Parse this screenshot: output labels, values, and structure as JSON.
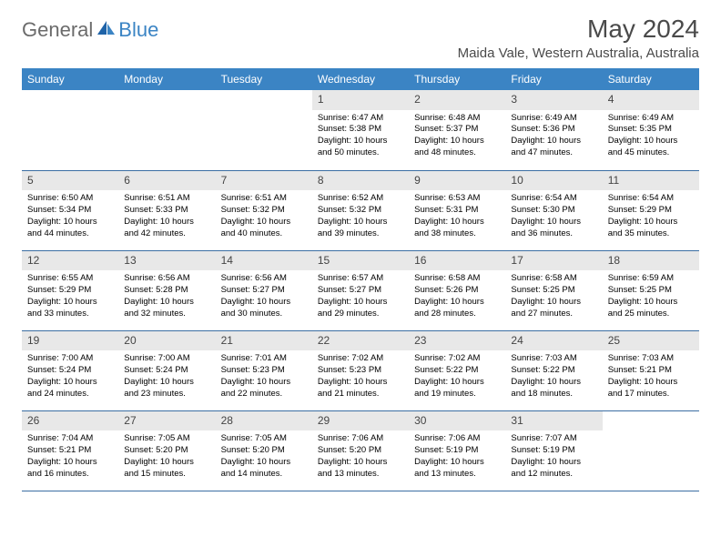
{
  "brand": {
    "part1": "General",
    "part2": "Blue"
  },
  "title": "May 2024",
  "location": "Maida Vale, Western Australia, Australia",
  "colors": {
    "header_bg": "#3b84c4",
    "header_text": "#ffffff",
    "daynum_bg": "#e8e8e8",
    "row_border": "#3b6ea3",
    "title_color": "#4a4a4a",
    "logo_gray": "#6b6b6b",
    "logo_blue": "#3b84c4"
  },
  "weekdays": [
    "Sunday",
    "Monday",
    "Tuesday",
    "Wednesday",
    "Thursday",
    "Friday",
    "Saturday"
  ],
  "weeks": [
    [
      null,
      null,
      null,
      {
        "n": "1",
        "sr": "6:47 AM",
        "ss": "5:38 PM",
        "dl": "10 hours and 50 minutes."
      },
      {
        "n": "2",
        "sr": "6:48 AM",
        "ss": "5:37 PM",
        "dl": "10 hours and 48 minutes."
      },
      {
        "n": "3",
        "sr": "6:49 AM",
        "ss": "5:36 PM",
        "dl": "10 hours and 47 minutes."
      },
      {
        "n": "4",
        "sr": "6:49 AM",
        "ss": "5:35 PM",
        "dl": "10 hours and 45 minutes."
      }
    ],
    [
      {
        "n": "5",
        "sr": "6:50 AM",
        "ss": "5:34 PM",
        "dl": "10 hours and 44 minutes."
      },
      {
        "n": "6",
        "sr": "6:51 AM",
        "ss": "5:33 PM",
        "dl": "10 hours and 42 minutes."
      },
      {
        "n": "7",
        "sr": "6:51 AM",
        "ss": "5:32 PM",
        "dl": "10 hours and 40 minutes."
      },
      {
        "n": "8",
        "sr": "6:52 AM",
        "ss": "5:32 PM",
        "dl": "10 hours and 39 minutes."
      },
      {
        "n": "9",
        "sr": "6:53 AM",
        "ss": "5:31 PM",
        "dl": "10 hours and 38 minutes."
      },
      {
        "n": "10",
        "sr": "6:54 AM",
        "ss": "5:30 PM",
        "dl": "10 hours and 36 minutes."
      },
      {
        "n": "11",
        "sr": "6:54 AM",
        "ss": "5:29 PM",
        "dl": "10 hours and 35 minutes."
      }
    ],
    [
      {
        "n": "12",
        "sr": "6:55 AM",
        "ss": "5:29 PM",
        "dl": "10 hours and 33 minutes."
      },
      {
        "n": "13",
        "sr": "6:56 AM",
        "ss": "5:28 PM",
        "dl": "10 hours and 32 minutes."
      },
      {
        "n": "14",
        "sr": "6:56 AM",
        "ss": "5:27 PM",
        "dl": "10 hours and 30 minutes."
      },
      {
        "n": "15",
        "sr": "6:57 AM",
        "ss": "5:27 PM",
        "dl": "10 hours and 29 minutes."
      },
      {
        "n": "16",
        "sr": "6:58 AM",
        "ss": "5:26 PM",
        "dl": "10 hours and 28 minutes."
      },
      {
        "n": "17",
        "sr": "6:58 AM",
        "ss": "5:25 PM",
        "dl": "10 hours and 27 minutes."
      },
      {
        "n": "18",
        "sr": "6:59 AM",
        "ss": "5:25 PM",
        "dl": "10 hours and 25 minutes."
      }
    ],
    [
      {
        "n": "19",
        "sr": "7:00 AM",
        "ss": "5:24 PM",
        "dl": "10 hours and 24 minutes."
      },
      {
        "n": "20",
        "sr": "7:00 AM",
        "ss": "5:24 PM",
        "dl": "10 hours and 23 minutes."
      },
      {
        "n": "21",
        "sr": "7:01 AM",
        "ss": "5:23 PM",
        "dl": "10 hours and 22 minutes."
      },
      {
        "n": "22",
        "sr": "7:02 AM",
        "ss": "5:23 PM",
        "dl": "10 hours and 21 minutes."
      },
      {
        "n": "23",
        "sr": "7:02 AM",
        "ss": "5:22 PM",
        "dl": "10 hours and 19 minutes."
      },
      {
        "n": "24",
        "sr": "7:03 AM",
        "ss": "5:22 PM",
        "dl": "10 hours and 18 minutes."
      },
      {
        "n": "25",
        "sr": "7:03 AM",
        "ss": "5:21 PM",
        "dl": "10 hours and 17 minutes."
      }
    ],
    [
      {
        "n": "26",
        "sr": "7:04 AM",
        "ss": "5:21 PM",
        "dl": "10 hours and 16 minutes."
      },
      {
        "n": "27",
        "sr": "7:05 AM",
        "ss": "5:20 PM",
        "dl": "10 hours and 15 minutes."
      },
      {
        "n": "28",
        "sr": "7:05 AM",
        "ss": "5:20 PM",
        "dl": "10 hours and 14 minutes."
      },
      {
        "n": "29",
        "sr": "7:06 AM",
        "ss": "5:20 PM",
        "dl": "10 hours and 13 minutes."
      },
      {
        "n": "30",
        "sr": "7:06 AM",
        "ss": "5:19 PM",
        "dl": "10 hours and 13 minutes."
      },
      {
        "n": "31",
        "sr": "7:07 AM",
        "ss": "5:19 PM",
        "dl": "10 hours and 12 minutes."
      },
      null
    ]
  ],
  "labels": {
    "sunrise": "Sunrise:",
    "sunset": "Sunset:",
    "daylight": "Daylight:"
  }
}
